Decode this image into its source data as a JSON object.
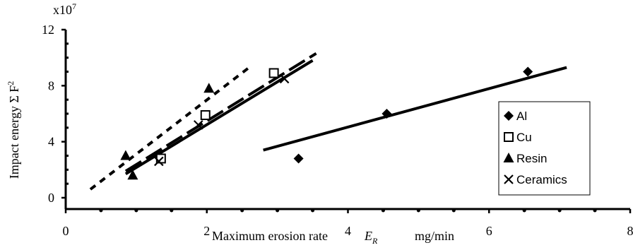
{
  "chart_data": {
    "type": "scatter",
    "title": "",
    "xlabel": "Maximum erosion rate",
    "xlabel_symbol": "E",
    "xlabel_subscript": "R",
    "xlabel_unit": "mg/min",
    "ylabel": "Impact energy Σ F",
    "ylabel_superscript": "2",
    "y_multiplier": "x10",
    "y_multiplier_exp": "7",
    "xlim": [
      0,
      8
    ],
    "ylim": [
      0,
      12
    ],
    "x_ticks": [
      "0",
      "2",
      "4",
      "6",
      "8"
    ],
    "y_ticks": [
      "0",
      "4",
      "8",
      "12"
    ],
    "grid": false,
    "legend_position": "right",
    "series": [
      {
        "name": "Al",
        "marker": "diamond",
        "points": [
          [
            3.3,
            2.8
          ],
          [
            4.55,
            6.0
          ],
          [
            6.55,
            9.0
          ]
        ],
        "trend": [
          [
            2.8,
            3.4
          ],
          [
            7.1,
            9.3
          ]
        ],
        "trend_style": "solid"
      },
      {
        "name": "Cu",
        "marker": "square",
        "points": [
          [
            1.35,
            2.8
          ],
          [
            1.98,
            5.9
          ],
          [
            2.95,
            8.9
          ]
        ],
        "trend": [
          [
            0.85,
            1.9
          ],
          [
            3.55,
            10.3
          ]
        ],
        "trend_style": "long-dash"
      },
      {
        "name": "Resin",
        "marker": "triangle",
        "points": [
          [
            0.85,
            3.0
          ],
          [
            0.95,
            1.6
          ],
          [
            2.03,
            7.8
          ]
        ],
        "trend": [
          [
            0.35,
            0.6
          ],
          [
            2.6,
            9.3
          ]
        ],
        "trend_style": "short-dash"
      },
      {
        "name": "Ceramics",
        "marker": "cross",
        "points": [
          [
            1.32,
            2.6
          ],
          [
            1.88,
            5.2
          ],
          [
            3.1,
            8.5
          ]
        ],
        "trend": [
          [
            0.85,
            1.7
          ],
          [
            3.5,
            9.8
          ]
        ],
        "trend_style": "solid"
      }
    ]
  }
}
